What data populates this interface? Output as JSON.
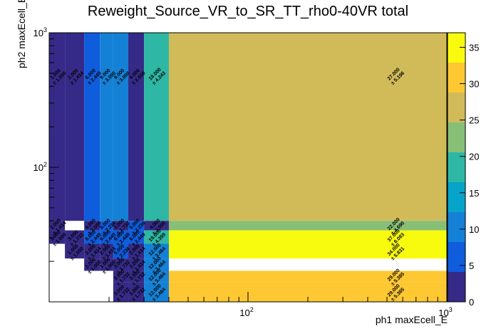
{
  "chart_data": {
    "type": "heatmap",
    "title": "Reweight_Source_VR_to_SR_TT_rho0-40VR total",
    "xlabel": "ph1 maxEcell_E",
    "ylabel": "ph2 maxEcell_E",
    "xscale": "log",
    "yscale": "log",
    "xlim": [
      10,
      1000
    ],
    "ylim": [
      10,
      1000
    ],
    "x_ticks": [
      {
        "base": "10",
        "exp": "2",
        "value": 100
      },
      {
        "base": "10",
        "exp": "3",
        "value": 1000
      }
    ],
    "y_ticks": [
      {
        "base": "10",
        "exp": "2",
        "value": 100
      },
      {
        "base": "10",
        "exp": "3",
        "value": 1000
      }
    ],
    "zlim": [
      0,
      37
    ],
    "z_ticks": [
      "0",
      "5",
      "10",
      "15",
      "20",
      "25",
      "30",
      "35"
    ],
    "x_edges": [
      10,
      12,
      15,
      18,
      21,
      25,
      30,
      40,
      1000
    ],
    "y_edges": [
      10,
      14,
      17,
      21,
      27,
      34,
      40,
      1000
    ],
    "cells": [
      {
        "xi": 0,
        "yi": 6,
        "value": 1,
        "label": "1.000",
        "error": "1.000"
      },
      {
        "xi": 1,
        "yi": 6,
        "value": 2,
        "label": "2.000",
        "error": "1.414"
      },
      {
        "xi": 2,
        "yi": 6,
        "value": 6,
        "label": "6.000",
        "error": "2.449"
      },
      {
        "xi": 3,
        "yi": 6,
        "value": 9,
        "label": "9.000",
        "error": "3.000"
      },
      {
        "xi": 4,
        "yi": 6,
        "value": 9,
        "label": "9.000",
        "error": "3.000"
      },
      {
        "xi": 5,
        "yi": 6,
        "value": 4,
        "label": "4.000",
        "error": "2.000"
      },
      {
        "xi": 6,
        "yi": 6,
        "value": 18,
        "label": "18.000",
        "error": "4.243"
      },
      {
        "xi": 7,
        "yi": 6,
        "value": 27,
        "label": "27.000",
        "error": "5.196"
      },
      {
        "xi": 0,
        "yi": 5,
        "value": 2,
        "label": "2.000",
        "error": "1.414"
      },
      {
        "xi": 2,
        "yi": 5,
        "value": 4,
        "label": "4.000",
        "error": "2.000"
      },
      {
        "xi": 3,
        "yi": 5,
        "value": 5,
        "label": "5.000",
        "error": "2.236"
      },
      {
        "xi": 4,
        "yi": 5,
        "value": 3,
        "label": "3.000",
        "error": "1.732"
      },
      {
        "xi": 5,
        "yi": 5,
        "value": 5,
        "label": "5.000",
        "error": "2.236"
      },
      {
        "xi": 6,
        "yi": 5,
        "value": 4,
        "label": "4.000",
        "error": "2.000"
      },
      {
        "xi": 7,
        "yi": 5,
        "value": 22,
        "label": "22.000",
        "error": "4.690"
      },
      {
        "xi": 0,
        "yi": 4,
        "value": 1,
        "label": "1.000",
        "error": "1.000"
      },
      {
        "xi": 1,
        "yi": 4,
        "value": 3,
        "label": "3.000",
        "error": "1.732"
      },
      {
        "xi": 2,
        "yi": 4,
        "value": 6,
        "label": "6.000",
        "error": "2.449"
      },
      {
        "xi": 3,
        "yi": 4,
        "value": 6,
        "label": "6.000",
        "error": "2.449"
      },
      {
        "xi": 4,
        "yi": 4,
        "value": 6,
        "label": "6.000",
        "error": "2.449"
      },
      {
        "xi": 5,
        "yi": 4,
        "value": 6,
        "label": "6.000",
        "error": "2.449"
      },
      {
        "xi": 6,
        "yi": 4,
        "value": 19,
        "label": "19.000",
        "error": "4.359"
      },
      {
        "xi": 7,
        "yi": 4,
        "value": 37,
        "label": "37.000",
        "error": "6.083"
      },
      {
        "xi": 1,
        "yi": 3,
        "value": 1,
        "label": "1.000",
        "error": "1.000"
      },
      {
        "xi": 2,
        "yi": 3,
        "value": 2,
        "label": "2.000",
        "error": "1.414"
      },
      {
        "xi": 3,
        "yi": 3,
        "value": 2,
        "label": "2.000",
        "error": "1.414"
      },
      {
        "xi": 4,
        "yi": 3,
        "value": 5,
        "label": "5.000",
        "error": "2.236"
      },
      {
        "xi": 5,
        "yi": 3,
        "value": 2,
        "label": "2.000",
        "error": "1.414"
      },
      {
        "xi": 6,
        "yi": 3,
        "value": 12,
        "label": "12.000",
        "error": "3.464"
      },
      {
        "xi": 7,
        "yi": 3,
        "value": 34,
        "label": "34.000",
        "error": "5.831"
      },
      {
        "xi": 2,
        "yi": 2,
        "value": 1,
        "label": "1.000",
        "error": "1.000"
      },
      {
        "xi": 3,
        "yi": 2,
        "value": 1,
        "label": "1.000",
        "error": "1.000"
      },
      {
        "xi": 4,
        "yi": 2,
        "value": 3,
        "label": "3.000",
        "error": "1.732"
      },
      {
        "xi": 5,
        "yi": 2,
        "value": 2,
        "label": "2.000",
        "error": "1.414"
      },
      {
        "xi": 6,
        "yi": 2,
        "value": 12,
        "label": "12.000",
        "error": "3.464"
      },
      {
        "xi": 4,
        "yi": 0,
        "value": 3,
        "label": "3.000",
        "error": "1.732"
      },
      {
        "xi": 5,
        "yi": 0,
        "value": 3,
        "label": "3.000",
        "error": "1.732"
      },
      {
        "xi": 6,
        "yi": 0,
        "value": 12,
        "label": "12.000",
        "error": "3.464"
      },
      {
        "xi": 7,
        "yi": 0,
        "value": 29,
        "label": "29.000",
        "error": "5.385"
      },
      {
        "xi": 4,
        "yi": 1,
        "value": 3,
        "label": "3.000",
        "error": "1.732"
      },
      {
        "xi": 5,
        "yi": 1,
        "value": 3,
        "label": "3.000",
        "error": "1.732"
      },
      {
        "xi": 6,
        "yi": 1,
        "value": 12,
        "label": "12.000",
        "error": "3.464"
      },
      {
        "xi": 7,
        "yi": 1,
        "value": 29,
        "label": "29.000",
        "error": "5.385"
      }
    ],
    "palette": [
      "#352a87",
      "#0f5cdd",
      "#1481d6",
      "#06a4ca",
      "#2eb7a4",
      "#87bf77",
      "#d1bb59",
      "#fec832",
      "#f9fb0e"
    ],
    "grid": false,
    "legend": "colorbar-right"
  }
}
